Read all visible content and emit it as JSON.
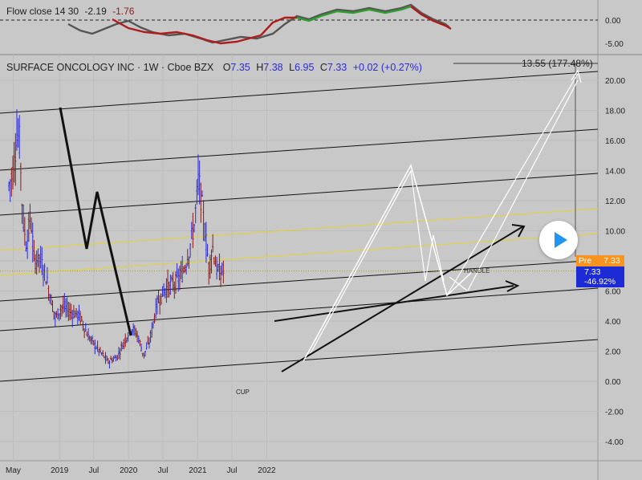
{
  "indicator": {
    "name": "Flow close 14 30",
    "value1": "-2.19",
    "value2": "-1.76",
    "axis_labels": [
      "0.00",
      "-5.00"
    ]
  },
  "legend": {
    "symbol": "SURFACE ONCOLOGY INC",
    "interval": "1W",
    "exchange": "Cboe BZX",
    "o_label": "O",
    "o": "7.35",
    "h_label": "H",
    "h": "7.38",
    "l_label": "L",
    "l": "6.95",
    "c_label": "C",
    "c": "7.33",
    "change": "+0.02 (+0.27%)"
  },
  "annotations": {
    "target": "13.55 (177.48%)",
    "cup": "CUP",
    "handle": "HANDLE"
  },
  "price_tags": {
    "pre_label": "Pre",
    "pre_value": "7.33",
    "last_value": "7.33",
    "last_change": "-46.92%"
  },
  "colors": {
    "up": "#2b2bd6",
    "down": "#8b1a1a",
    "background": "#c8c8c8",
    "pre_tag": "#f7931e",
    "last_tag": "#1d2bd6",
    "yellow_line": "#e6d32a",
    "indicator_green": "#2e9e2e",
    "indicator_red": "#b01c1c",
    "indicator_gray": "#555555"
  },
  "chart_data": {
    "type": "candlestick",
    "y_ticks": [
      "20.00",
      "18.00",
      "16.00",
      "14.00",
      "12.00",
      "10.00",
      "8.00",
      "6.00",
      "4.00",
      "2.00",
      "0.00",
      "-2.00",
      "-4.00"
    ],
    "x_ticks": [
      "May",
      "2019",
      "Jul",
      "2020",
      "Jul",
      "2021",
      "Jul",
      "2022"
    ],
    "ylim": [
      -5.5,
      21.5
    ],
    "price_path": [
      {
        "x": "2018-04-08",
        "y": 13.0
      },
      {
        "x": "2018-05-01",
        "y": 14.0
      },
      {
        "x": "2018-05-20",
        "y": 16.5
      },
      {
        "x": "2018-06-05",
        "y": 15.8
      },
      {
        "x": "2018-06-20",
        "y": 11.0
      },
      {
        "x": "2018-07-10",
        "y": 9.0
      },
      {
        "x": "2018-08-01",
        "y": 11.0
      },
      {
        "x": "2018-08-20",
        "y": 8.0
      },
      {
        "x": "2018-09-15",
        "y": 8.3
      },
      {
        "x": "2018-10-20",
        "y": 7.0
      },
      {
        "x": "2018-12-10",
        "y": 4.2
      },
      {
        "x": "2019-01-15",
        "y": 5.0
      },
      {
        "x": "2019-03-01",
        "y": 4.6
      },
      {
        "x": "2019-04-15",
        "y": 4.4
      },
      {
        "x": "2019-06-01",
        "y": 3.0
      },
      {
        "x": "2019-08-01",
        "y": 2.0
      },
      {
        "x": "2019-09-15",
        "y": 1.3
      },
      {
        "x": "2019-11-01",
        "y": 1.6
      },
      {
        "x": "2019-12-15",
        "y": 2.8
      },
      {
        "x": "2020-01-15",
        "y": 3.6
      },
      {
        "x": "2020-02-20",
        "y": 3.0
      },
      {
        "x": "2020-03-20",
        "y": 1.7
      },
      {
        "x": "2020-04-20",
        "y": 2.6
      },
      {
        "x": "2020-06-01",
        "y": 5.2
      },
      {
        "x": "2020-07-15",
        "y": 6.2
      },
      {
        "x": "2020-09-01",
        "y": 6.5
      },
      {
        "x": "2020-10-15",
        "y": 7.2
      },
      {
        "x": "2020-11-15",
        "y": 8.6
      },
      {
        "x": "2020-12-15",
        "y": 10.5
      },
      {
        "x": "2021-01-05",
        "y": 13.5
      },
      {
        "x": "2021-01-25",
        "y": 11.5
      },
      {
        "x": "2021-02-15",
        "y": 9.2
      },
      {
        "x": "2021-03-01",
        "y": 7.5
      },
      {
        "x": "2021-03-20",
        "y": 9.0
      },
      {
        "x": "2021-04-15",
        "y": 7.2
      },
      {
        "x": "2021-05-20",
        "y": 7.3
      }
    ],
    "last_price": 7.33,
    "target_price": 13.55
  }
}
